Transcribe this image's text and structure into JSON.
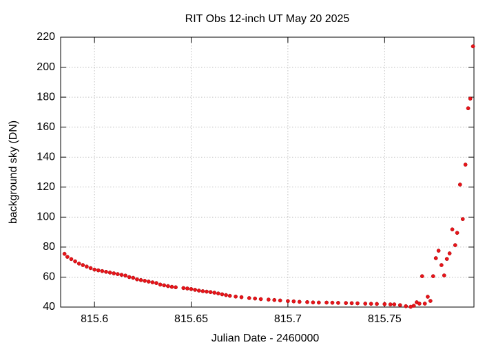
{
  "chart_data": {
    "type": "scatter",
    "title": "RIT Obs 12-inch UT May 20 2025",
    "xlabel": "Julian Date - 2460000",
    "ylabel": "background sky (DN)",
    "color": "#e8141a",
    "grid": true,
    "xlim": [
      815.5825,
      815.7962
    ],
    "ylim": [
      40,
      220
    ],
    "xticks": [
      815.6,
      815.65,
      815.7,
      815.75
    ],
    "yticks": [
      40,
      60,
      80,
      100,
      120,
      140,
      160,
      180,
      200,
      220
    ],
    "x": [
      815.5845,
      815.586,
      815.588,
      815.59,
      815.592,
      815.594,
      815.596,
      815.598,
      815.6,
      815.602,
      815.604,
      815.606,
      815.608,
      815.61,
      815.612,
      815.614,
      815.616,
      815.618,
      815.62,
      815.622,
      815.624,
      815.626,
      815.628,
      815.63,
      815.632,
      815.634,
      815.636,
      815.638,
      815.64,
      815.642,
      815.646,
      815.648,
      815.65,
      815.652,
      815.654,
      815.656,
      815.658,
      815.66,
      815.662,
      815.664,
      815.666,
      815.668,
      815.67,
      815.673,
      815.676,
      815.68,
      815.683,
      815.686,
      815.69,
      815.693,
      815.696,
      815.7,
      815.703,
      815.706,
      815.71,
      815.713,
      815.716,
      815.72,
      815.723,
      815.726,
      815.73,
      815.733,
      815.736,
      815.74,
      815.743,
      815.746,
      815.75,
      815.753,
      815.755,
      815.758,
      815.761,
      815.7635,
      815.7651,
      815.7666,
      815.768,
      815.7694,
      815.7708,
      815.7723,
      815.7737,
      815.7751,
      815.7765,
      815.7779,
      815.7794,
      815.7808,
      815.7822,
      815.7836,
      815.785,
      815.7865,
      815.7875,
      815.789,
      815.7904,
      815.7918,
      815.7932,
      815.7943,
      815.7957
    ],
    "values": [
      75.5,
      73.5,
      72,
      70.5,
      69,
      68,
      67,
      66,
      65,
      64.5,
      64,
      63.5,
      63,
      62.5,
      62,
      61.5,
      61,
      60,
      59.5,
      58.5,
      58,
      57.5,
      57,
      56.5,
      56,
      55,
      54.5,
      54,
      53.5,
      53.2,
      52.7,
      52.4,
      52,
      51.5,
      51,
      50.6,
      50.3,
      50,
      49.6,
      49.1,
      48.5,
      48,
      47.5,
      47,
      46.6,
      46,
      45.7,
      45.3,
      45,
      44.7,
      44.4,
      44,
      43.8,
      43.5,
      43.3,
      43.1,
      43,
      43,
      42.9,
      42.8,
      42.7,
      42.6,
      42.5,
      42.3,
      42.2,
      42.1,
      42,
      41.8,
      41.8,
      41.3,
      40.6,
      40.2,
      40.9,
      43.2,
      42.3,
      60.6,
      42.3,
      46.9,
      44.1,
      60.6,
      72.6,
      77.6,
      68,
      61.1,
      72.1,
      75.8,
      91.8,
      81.3,
      89.5,
      121.7,
      98.7,
      135,
      172.6,
      179,
      213.9
    ]
  }
}
